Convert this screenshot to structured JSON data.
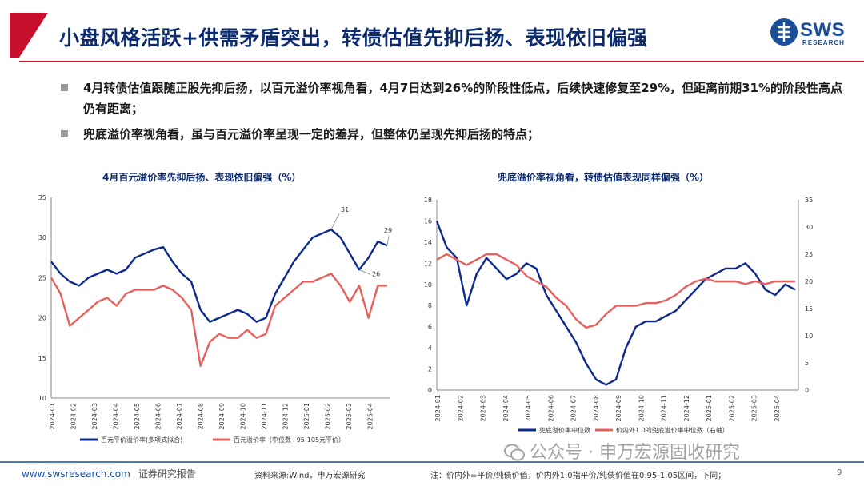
{
  "title": "小盘风格活跃+供需矛盾突出，转债估值先抑后扬、表现依旧偏强",
  "logo": {
    "text": "SWS",
    "sub": "RESEARCH",
    "color": "#1b4e9b"
  },
  "bullets": [
    "4月转债估值跟随正股先抑后扬，以百元溢价率视角看，4月7日达到26%的阶段性低点，后续快速修复至29%，但距离前期31%的阶段性高点仍有距离；",
    "兜底溢价率视角看，虽与百元溢价率呈现一定的差异，但整体仍呈现先抑后扬的特点；"
  ],
  "colors": {
    "title": "#0c2a6e",
    "accent": "#c8102e",
    "series_blue": "#0c2a8e",
    "series_red": "#e8605c"
  },
  "chart_data": [
    {
      "type": "line",
      "title": "4月百元溢价率先抑后扬、表现依旧偏强（%）",
      "x_ticks": [
        "2024-01",
        "2024-02",
        "2024-03",
        "2024-04",
        "2024-05",
        "2024-06",
        "2024-07",
        "2024-08",
        "2024-09",
        "2024-10",
        "2024-11",
        "2024-12",
        "2025-01",
        "2025-02",
        "2025-03",
        "2025-04"
      ],
      "ylim": [
        10,
        35
      ],
      "y_ticks": [
        10,
        15,
        20,
        25,
        30,
        35
      ],
      "annotations": [
        "31",
        "29",
        "26"
      ],
      "series": [
        {
          "name": "百元平价溢价率(多项式拟合)",
          "color": "#0c2a8e",
          "values": [
            27,
            25.5,
            24.5,
            24,
            25,
            25.5,
            26,
            25.5,
            26,
            27.5,
            28,
            28.5,
            28.8,
            27,
            25.5,
            24.5,
            21,
            19.5,
            20,
            20.5,
            21,
            20.5,
            19.5,
            20,
            23,
            25,
            27,
            28.5,
            30,
            30.5,
            31,
            30,
            28,
            26,
            27.5,
            29.5,
            29
          ]
        },
        {
          "name": "百元溢价率（中位数+95-105元平价）",
          "color": "#e8605c",
          "values": [
            25,
            23,
            19,
            20,
            21,
            22,
            22.5,
            21.5,
            23,
            23.5,
            23.5,
            23.5,
            24,
            23.5,
            22.5,
            21,
            14,
            17,
            18,
            17.5,
            17.5,
            18.5,
            17.5,
            18,
            21.5,
            22.5,
            23.5,
            24.5,
            24.5,
            25,
            25.5,
            24,
            22,
            24,
            20,
            24,
            24
          ]
        }
      ]
    },
    {
      "type": "line",
      "title": "兜底溢价率视角看，转债估值表现同样偏强（%）",
      "x_ticks": [
        "2024-01",
        "2024-02",
        "2024-03",
        "2024-04",
        "2024-05",
        "2024-06",
        "2024-07",
        "2024-08",
        "2024-09",
        "2024-10",
        "2024-11",
        "2024-12",
        "2025-01",
        "2025-02",
        "2025-03",
        "2025-04"
      ],
      "ylim": [
        0,
        18
      ],
      "y_ticks": [
        0,
        2,
        4,
        6,
        8,
        10,
        12,
        14,
        16,
        18
      ],
      "y2lim": [
        0,
        35
      ],
      "y2_ticks": [
        0,
        5,
        10,
        15,
        20,
        25,
        30,
        35
      ],
      "series": [
        {
          "name": "兜底溢价率中位数",
          "axis": "left",
          "color": "#0c2a8e",
          "values": [
            16,
            13.5,
            12.5,
            8,
            11,
            12.5,
            11.5,
            10.5,
            11,
            12,
            11.5,
            9,
            7.5,
            6,
            4.5,
            2.5,
            1,
            0.5,
            1,
            4,
            6,
            6.5,
            6.5,
            7,
            7.5,
            8.5,
            9.5,
            10.5,
            11,
            11.5,
            11.5,
            12,
            11,
            9.5,
            9,
            10,
            9.5
          ]
        },
        {
          "name": "价内外1.0的兜底溢价率中位数（右轴）",
          "axis": "right",
          "color": "#e8605c",
          "values": [
            24,
            25,
            24,
            23,
            24,
            25,
            25,
            24,
            23,
            21,
            20,
            19,
            17,
            15.5,
            13,
            11.5,
            12,
            14,
            15.5,
            15.5,
            15.5,
            16,
            16,
            16.5,
            17.5,
            19,
            20,
            20.5,
            20,
            20,
            20,
            19.5,
            20,
            19.5,
            20,
            20,
            20
          ]
        }
      ]
    }
  ],
  "footer": {
    "website": "www.swsresearch.com",
    "report_type": "证券研究报告",
    "source": "资料来源:Wind，申万宏源研究",
    "note": "注：价内外=平价/纯债价值，价内外1.0指平价/纯债价值在0.95-1.05区间，下同；",
    "page": "9"
  },
  "watermark": "公众号 · 申万宏源固收研究"
}
